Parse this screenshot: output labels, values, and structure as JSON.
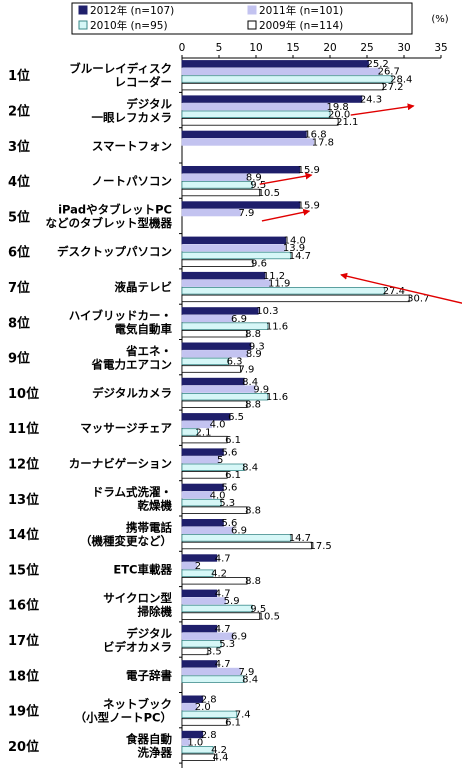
{
  "chart_data": {
    "type": "bar",
    "orientation": "horizontal",
    "unit": "(%)",
    "xlim": [
      0,
      35
    ],
    "xticks": [
      0,
      5,
      10,
      15,
      20,
      25,
      30,
      35
    ],
    "grid": false,
    "legend_position": "top",
    "series": [
      {
        "name": "2012年 (n=107)",
        "color": "#1f1f6b",
        "border": "#1f1f6b",
        "values": [
          25.2,
          24.3,
          16.8,
          15.9,
          15.9,
          14.0,
          11.2,
          10.3,
          9.3,
          8.4,
          6.5,
          5.6,
          5.6,
          5.6,
          4.7,
          4.7,
          4.7,
          4.7,
          2.8,
          2.8
        ]
      },
      {
        "name": "2011年 (n=101)",
        "color": "#c3c3f0",
        "border": "#c3c3f0",
        "values": [
          26.7,
          19.8,
          17.8,
          8.9,
          7.9,
          13.9,
          11.9,
          6.9,
          8.9,
          9.9,
          4.0,
          5.0,
          4.0,
          6.9,
          2.0,
          5.9,
          6.9,
          7.9,
          2.0,
          1.0
        ]
      },
      {
        "name": "2010年 (n=95)",
        "color": "#d6f7f7",
        "border": "#3a8a8a",
        "values": [
          28.4,
          20.0,
          null,
          9.5,
          null,
          14.7,
          27.4,
          11.6,
          6.3,
          11.6,
          2.1,
          8.4,
          5.3,
          14.7,
          4.2,
          9.5,
          5.3,
          8.4,
          7.4,
          4.2
        ]
      },
      {
        "name": "2009年 (n=114)",
        "color": "#ffffff",
        "border": "#000000",
        "values": [
          27.2,
          21.1,
          null,
          10.5,
          null,
          9.6,
          30.7,
          8.8,
          7.9,
          8.8,
          6.1,
          6.1,
          8.8,
          17.5,
          8.8,
          10.5,
          3.5,
          null,
          6.1,
          4.4
        ]
      }
    ],
    "value_labels": [
      [
        "25.2",
        "26.7",
        "28.4",
        "27.2"
      ],
      [
        "24.3",
        "19.8",
        "20.0",
        "21.1"
      ],
      [
        "16.8",
        "17.8",
        "",
        ""
      ],
      [
        "15.9",
        "8.9",
        "9.5",
        "10.5"
      ],
      [
        "15.9",
        "7.9",
        "",
        ""
      ],
      [
        "14.0",
        "13.9",
        "14.7",
        "9.6"
      ],
      [
        "11.2",
        "11.9",
        "27.4",
        "30.7"
      ],
      [
        "10.3",
        "6.9",
        "11.6",
        "8.8"
      ],
      [
        "9.3",
        "8.9",
        "6.3",
        "7.9"
      ],
      [
        "8.4",
        "9.9",
        "11.6",
        "8.8"
      ],
      [
        "6.5",
        "4.0",
        "2.1",
        "6.1"
      ],
      [
        "5.6",
        "5",
        "8.4",
        "6.1"
      ],
      [
        "5.6",
        "4.0",
        "5.3",
        "8.8"
      ],
      [
        "5.6",
        "6.9",
        "14.7",
        "17.5"
      ],
      [
        "4.7",
        "2",
        "4.2",
        "8.8"
      ],
      [
        "4.7",
        "5.9",
        "9.5",
        "10.5"
      ],
      [
        "4.7",
        "6.9",
        "5.3",
        "3.5"
      ],
      [
        "4.7",
        "7.9",
        "8.4",
        ""
      ],
      [
        "2.8",
        "2.0",
        "7.4",
        "6.1"
      ],
      [
        "2.8",
        "1.0",
        "4.2",
        "4.4"
      ]
    ],
    "categories": [
      {
        "rank": "1位",
        "lines": [
          "ブルーレイディスク",
          "レコーダー"
        ]
      },
      {
        "rank": "2位",
        "lines": [
          "デジタル",
          "一眼レフカメラ"
        ]
      },
      {
        "rank": "3位",
        "lines": [
          "スマートフォン"
        ]
      },
      {
        "rank": "4位",
        "lines": [
          "ノートパソコン"
        ]
      },
      {
        "rank": "5位",
        "lines": [
          "iPadやタブレットPC",
          "などのタブレット型機器"
        ]
      },
      {
        "rank": "6位",
        "lines": [
          "デスクトップパソコン"
        ]
      },
      {
        "rank": "7位",
        "lines": [
          "液晶テレビ"
        ]
      },
      {
        "rank": "8位",
        "lines": [
          "ハイブリッドカー・",
          "電気自動車"
        ]
      },
      {
        "rank": "9位",
        "lines": [
          "省エネ・",
          "省電力エアコン"
        ]
      },
      {
        "rank": "10位",
        "lines": [
          "デジタルカメラ"
        ]
      },
      {
        "rank": "11位",
        "lines": [
          "マッサージチェア"
        ]
      },
      {
        "rank": "12位",
        "lines": [
          "カーナビゲーション"
        ]
      },
      {
        "rank": "13位",
        "lines": [
          "ドラム式洗濯・",
          "乾燥機"
        ]
      },
      {
        "rank": "14位",
        "lines": [
          "携帯電話",
          "（機種変更など）"
        ]
      },
      {
        "rank": "15位",
        "lines": [
          "ETC車載器"
        ]
      },
      {
        "rank": "16位",
        "lines": [
          "サイクロン型",
          "掃除機"
        ]
      },
      {
        "rank": "17位",
        "lines": [
          "デジタル",
          "ビデオカメラ"
        ]
      },
      {
        "rank": "18位",
        "lines": [
          "電子辞書"
        ]
      },
      {
        "rank": "19位",
        "lines": [
          "ネットブック",
          "（小型ノートPC）"
        ]
      },
      {
        "rank": "20位",
        "lines": [
          "食器自動",
          "洗浄器"
        ]
      }
    ],
    "annotations": [
      {
        "type": "arrow",
        "color": "#e00000",
        "category": "2位"
      },
      {
        "type": "arrow",
        "color": "#e00000",
        "category": "4位"
      },
      {
        "type": "arrow",
        "color": "#e00000",
        "category": "5位"
      },
      {
        "type": "arrow",
        "color": "#e00000",
        "category": "7位"
      }
    ]
  }
}
